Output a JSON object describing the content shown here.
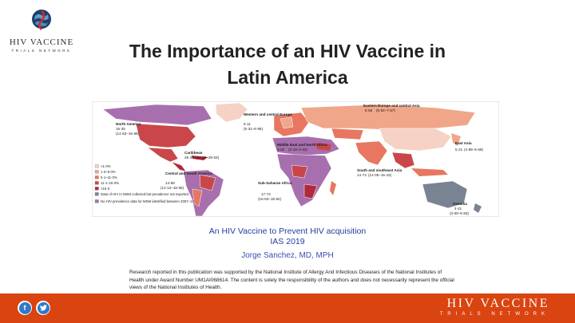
{
  "logo": {
    "name": "HIV VACCINE",
    "subtitle": "TRIALS NETWORK"
  },
  "title": {
    "line1": "The Importance of an HIV Vaccine in",
    "line2": "Latin America"
  },
  "map": {
    "regions": [
      {
        "name": "North America",
        "value": "15·35",
        "range": "(14·82–15·98)"
      },
      {
        "name": "Western and central Europe",
        "value": "6·11",
        "range": "(5·31–6·96)"
      },
      {
        "name": "Eastern Europe and central Asia",
        "value": "6·56",
        "range": "(5·54–7·57)"
      },
      {
        "name": "Middle East and North Africa",
        "value": "3·02",
        "range": "(2·43–3·62)"
      },
      {
        "name": "East Asia",
        "value": "5·21",
        "range": "(4·88–5·58)"
      },
      {
        "name": "Caribbean",
        "value": "25·44",
        "range": "(21·35–29·53)"
      },
      {
        "name": "South and southeast Asia",
        "value": "14·74",
        "range": "(14·05–15·43)"
      },
      {
        "name": "Central and South America",
        "value": "14·89",
        "range": "(14·12–15·66)"
      },
      {
        "name": "Sub-Saharan Africa",
        "value": "17·73",
        "range": "(16·53–18·92)"
      },
      {
        "name": "Oceania",
        "value": "4·41",
        "range": "(3·00–5·83)"
      }
    ],
    "legend": [
      {
        "label": "<1·0%",
        "color": "#f6d2c4"
      },
      {
        "label": "1·0–5·0%",
        "color": "#f0a688"
      },
      {
        "label": "5·1–11·0%",
        "color": "#e77760"
      },
      {
        "label": "11·1–15·0%",
        "color": "#c9474a"
      },
      {
        "label": ">15·0",
        "color": "#b02a3c"
      },
      {
        "label": "Data of HIV in MSM collected but prevalence not reported",
        "color": "#7a8392"
      },
      {
        "label": "No HIV prevalence data for MSM identified between 2007–12",
        "color": "#a86fae"
      }
    ]
  },
  "event": {
    "line1": "An HIV Vaccine to Prevent HIV acquisition",
    "line2": "IAS 2019"
  },
  "author": "Jorge Sanchez, MD, MPH",
  "disclaimer": "Research reported in this publication was supported by the National Institute of Allergy And Infectious Diseases of the National Institutes of Health under Award Number UM1AI068614. The content is solely the responsibility of the authors and does not necessarily represent the official views of the National Institutes of Health.",
  "footer": {
    "facebook": "f",
    "twitter": "t",
    "name": "HIV VACCINE",
    "subtitle": "TRIALS NETWORK"
  }
}
